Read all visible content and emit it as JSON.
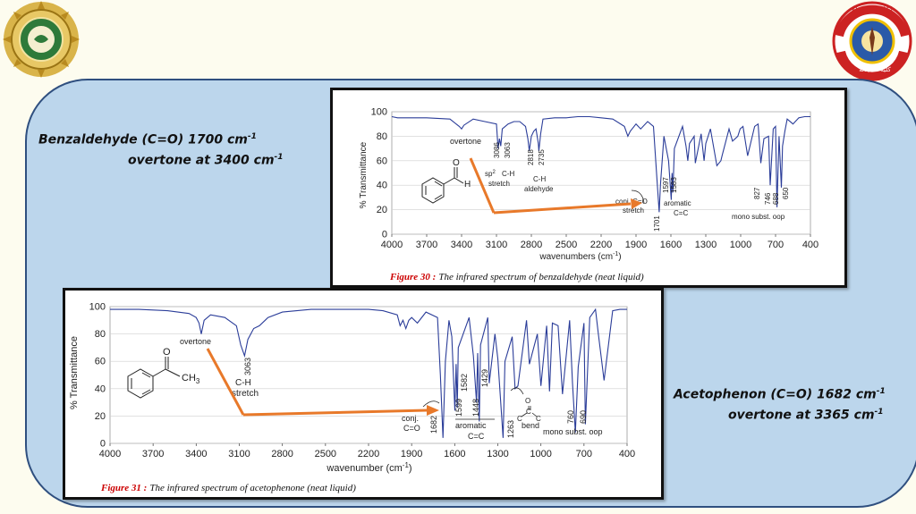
{
  "logos": {
    "left": {
      "name": "university-seal"
    },
    "right": {
      "name": "college-of-pharmacy-emblem",
      "text": "كلية الصيدلة",
      "text_top": "لكل داء دواء"
    }
  },
  "notes": {
    "benzaldehyde_line1": "Benzaldehyde (C=O) 1700 cm",
    "benzaldehyde_line2": "overtone at 3400 cm",
    "acetophenone_line1": "Acetophenon (C=O) 1682 cm",
    "acetophenone_line2": "overtone at 3365 cm",
    "superscript": "-1"
  },
  "arrow_color": "#e8792a",
  "figures": [
    {
      "caption_label": "Figure 30 :",
      "caption_text": "The infrared spectrum of benzaldehyde  (neat liquid)",
      "chart_data": {
        "type": "line",
        "xlabel": "wavenumbers (cm",
        "xlabel_unit": "-1",
        "xlabel_close": ")",
        "ylabel": "% Transmittance",
        "xlim": [
          4000,
          400
        ],
        "ylim": [
          0,
          100
        ],
        "xticks": [
          "4000",
          "3700",
          "3400",
          "3100",
          "2800",
          "2500",
          "2200",
          "1900",
          "1600",
          "1300",
          "1000",
          "700",
          "400"
        ],
        "yticks": [
          "0",
          "20",
          "40",
          "60",
          "80",
          "100"
        ],
        "series": [
          {
            "x": [
              4000,
              3950,
              3850,
              3700,
              3500,
              3420,
              3400,
              3380,
              3300,
              3200,
              3100,
              3086,
              3075,
              3063,
              3050,
              3000,
              2950,
              2900,
              2850,
              2830,
              2818,
              2800,
              2780,
              2760,
              2740,
              2735,
              2720,
              2700,
              2600,
              2500,
              2400,
              2300,
              2200,
              2100,
              2000,
              1970,
              1950,
              1900,
              1860,
              1800,
              1750,
              1720,
              1701,
              1690,
              1660,
              1620,
              1597,
              1590,
              1583,
              1570,
              1500,
              1470,
              1455,
              1440,
              1400,
              1390,
              1340,
              1315,
              1300,
              1260,
              1205,
              1170,
              1160,
              1100,
              1070,
              1025,
              1005,
              980,
              940,
              880,
              850,
              827,
              800,
              760,
              746,
              720,
              700,
              688,
              670,
              650,
              640,
              620,
              600,
              550,
              500,
              450,
              400
            ],
            "y": [
              96,
              95,
              95,
              95,
              94,
              88,
              86,
              89,
              94,
              92,
              90,
              70,
              78,
              72,
              86,
              90,
              92,
              92,
              88,
              78,
              68,
              80,
              84,
              86,
              74,
              68,
              82,
              94,
              95,
              95,
              96,
              96,
              95,
              94,
              88,
              80,
              84,
              90,
              86,
              92,
              88,
              45,
              18,
              40,
              80,
              60,
              28,
              50,
              34,
              70,
              88,
              72,
              60,
              74,
              80,
              58,
              82,
              60,
              74,
              86,
              56,
              60,
              64,
              86,
              76,
              80,
              86,
              88,
              64,
              88,
              90,
              58,
              78,
              80,
              40,
              86,
              88,
              22,
              80,
              38,
              72,
              84,
              94,
              90,
              95,
              96,
              96
            ]
          }
        ]
      },
      "annotations": {
        "overtone": "overtone",
        "ch_sp2_a": "3086",
        "ch_sp2_b": "3063",
        "sp2": "sp",
        "sp2_sup": "2",
        "ch": "C-H",
        "stretch": "stretch",
        "ald_a": "2818",
        "ald_b": "2735",
        "ald_ch": "C-H",
        "aldehyde": "aldehyde",
        "conj": "conj. C=O",
        "conj_stretch": "stretch",
        "peak1701": "1701",
        "ar_a": "1597",
        "ar_b": "1583",
        "aromatic": "aromatic",
        "cc": "C=C",
        "oop_a": "827",
        "oop_b": "746",
        "oop_c": "688",
        "oop_d": "650",
        "mono": "mono subst. oop",
        "struct_O": "O",
        "struct_H": "H"
      }
    },
    {
      "caption_label": "Figure 31 :",
      "caption_text": "The infrared spectrum of acetophenone (neat liquid)",
      "chart_data": {
        "type": "line",
        "xlabel": "wavenumber (cm",
        "xlabel_unit": "-1",
        "xlabel_close": ")",
        "ylabel": "% Transmittance",
        "xlim": [
          4000,
          400
        ],
        "ylim": [
          0,
          100
        ],
        "xticks": [
          "4000",
          "3700",
          "3400",
          "3100",
          "2800",
          "2500",
          "2200",
          "1900",
          "1600",
          "1300",
          "1000",
          "700",
          "400"
        ],
        "yticks": [
          "0",
          "20",
          "40",
          "60",
          "80",
          "100"
        ],
        "series": [
          {
            "x": [
              4000,
              3800,
              3600,
              3450,
              3400,
              3380,
              3365,
              3345,
              3300,
              3200,
              3120,
              3090,
              3063,
              3040,
              3000,
              2960,
              2920,
              2900,
              2800,
              2700,
              2600,
              2500,
              2400,
              2300,
              2200,
              2100,
              2000,
              1980,
              1960,
              1940,
              1920,
              1900,
              1860,
              1800,
              1720,
              1700,
              1682,
              1665,
              1640,
              1620,
              1599,
              1590,
              1582,
              1575,
              1500,
              1470,
              1448,
              1440,
              1429,
              1420,
              1370,
              1360,
              1320,
              1300,
              1263,
              1250,
              1200,
              1180,
              1160,
              1100,
              1080,
              1025,
              1000,
              960,
              940,
              920,
              880,
              850,
              800,
              780,
              760,
              740,
              700,
              690,
              680,
              660,
              620,
              600,
              560,
              500,
              450,
              400
            ],
            "y": [
              98,
              98,
              97,
              95,
              92,
              88,
              80,
              90,
              94,
              92,
              86,
              72,
              64,
              76,
              84,
              86,
              90,
              92,
              96,
              97,
              98,
              98,
              98,
              98,
              98,
              97,
              94,
              86,
              90,
              84,
              90,
              92,
              88,
              96,
              92,
              50,
              4,
              60,
              90,
              78,
              24,
              58,
              26,
              70,
              92,
              64,
              30,
              66,
              16,
              72,
              92,
              44,
              80,
              62,
              4,
              60,
              78,
              40,
              42,
              90,
              58,
              80,
              42,
              86,
              38,
              88,
              86,
              36,
              90,
              44,
              8,
              56,
              88,
              14,
              40,
              92,
              98,
              80,
              46,
              97,
              98,
              98
            ]
          }
        ]
      },
      "annotations": {
        "overtone": "overtone",
        "peak3063": "3063",
        "ch": "C-H",
        "stretch": "stretch",
        "conj": "conj.",
        "conj_co": "C=O",
        "peak1682": "1682",
        "ar_a": "1599",
        "ar_b": "1582",
        "ar_c": "1448",
        "ar_d": "1429",
        "aromatic": "aromatic",
        "cc": "C=C",
        "peak1263": "1263",
        "bend_c1": "C",
        "bend_o": "O",
        "bend_eq": "C",
        "bend_c2": "C",
        "bend": "bend",
        "oop_a": "760",
        "oop_b": "690",
        "mono": "mono subst. oop",
        "struct_O": "O",
        "struct_CH3": "CH",
        "struct_3": "3"
      }
    }
  ]
}
